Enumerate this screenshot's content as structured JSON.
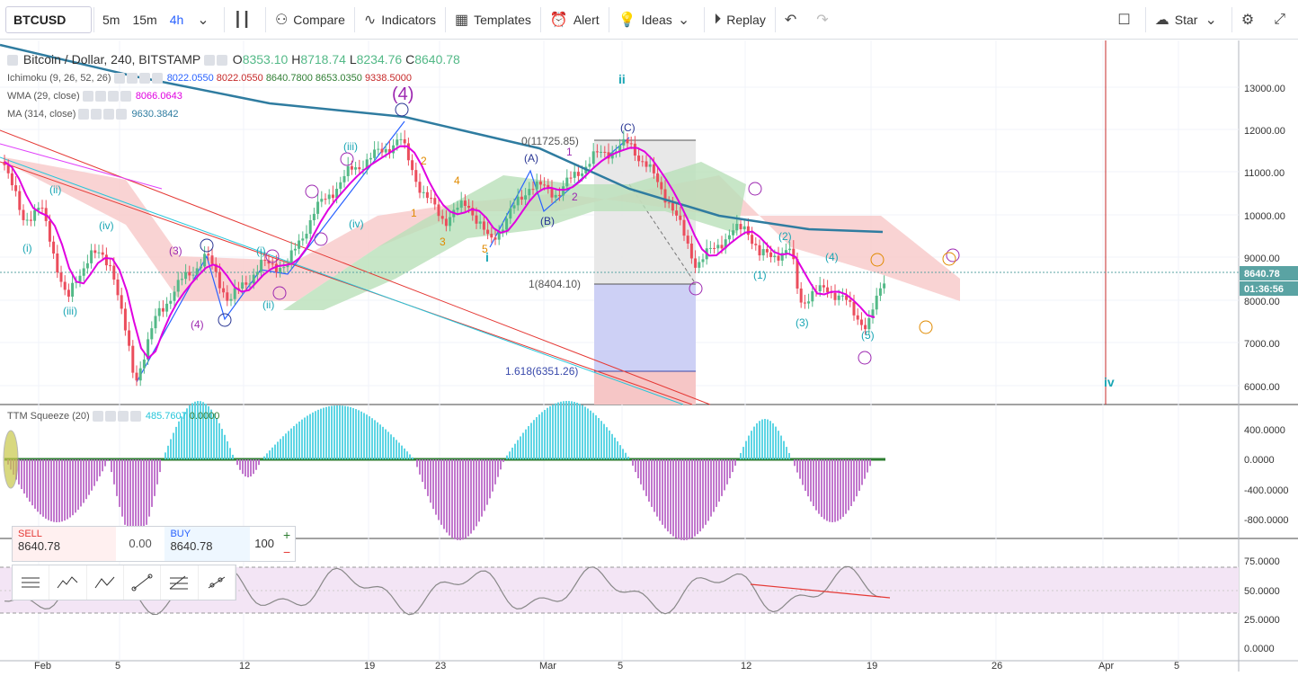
{
  "toolbar": {
    "symbol": "BTCUSD",
    "intervals": [
      "5m",
      "15m",
      "4h"
    ],
    "active_interval": "4h",
    "compare": "Compare",
    "indicators": "Indicators",
    "templates": "Templates",
    "alert": "Alert",
    "ideas": "Ideas",
    "replay": "Replay",
    "star": "Star"
  },
  "legend": {
    "title": "Bitcoin / Dollar, 240, BITSTAMP",
    "o_label": "O",
    "o": "8353.10",
    "h_label": "H",
    "h": "8718.74",
    "l_label": "L",
    "l": "8234.76",
    "c_label": "C",
    "c": "8640.78",
    "ichimoku": "Ichimoku (9, 26, 52, 26)",
    "ichimoku_vals": [
      "8022.0550",
      "8022.0550",
      "8640.7800",
      "8653.0350",
      "9338.5000"
    ],
    "wma": "WMA (29, close)",
    "wma_val": "8066.0643",
    "ma": "MA (314, close)",
    "ma_val": "9630.3842",
    "ttm": "TTM Squeeze (20)",
    "ttm_vals": [
      "485.7607",
      "0.0000"
    ]
  },
  "price_axis": {
    "ticks": [
      "13000.00",
      "12000.00",
      "11000.00",
      "10000.00",
      "9000.00",
      "8000.00",
      "7000.00",
      "6000.00"
    ],
    "last_price": "8640.78",
    "countdown": "01:36:56"
  },
  "ttm_axis": {
    "ticks": [
      "400.0000",
      "0.0000",
      "-400.0000",
      "-800.0000"
    ]
  },
  "rsi_axis": {
    "ticks": [
      "75.0000",
      "50.0000",
      "25.0000",
      "0.0000"
    ]
  },
  "time_axis": {
    "ticks": [
      "Feb",
      "5",
      "12",
      "19",
      "23",
      "Mar",
      "5",
      "12",
      "19",
      "26",
      "Apr",
      "5"
    ]
  },
  "fib": {
    "level0": "0(11725.85)",
    "level1": "1(8404.10)",
    "level1618": "1.618(6351.26)"
  },
  "wave_labels": {
    "w4_big": "(4)",
    "w_ii_top": "ii",
    "wave_i": "i",
    "wave_iv": "iv"
  },
  "trade_panel": {
    "sell_label": "SELL",
    "sell_price": "8640.78",
    "spread": "0.00",
    "buy_label": "BUY",
    "buy_price": "8640.78",
    "qty": "100",
    "plus": "+",
    "minus": "−"
  },
  "colors": {
    "up": "#53b987",
    "down": "#eb4d5c",
    "wma": "#e000e0",
    "ma": "#2c7d9e",
    "accent": "#2962ff",
    "cloud_green": "#a5d6a7",
    "cloud_red": "#f8bbbb"
  }
}
